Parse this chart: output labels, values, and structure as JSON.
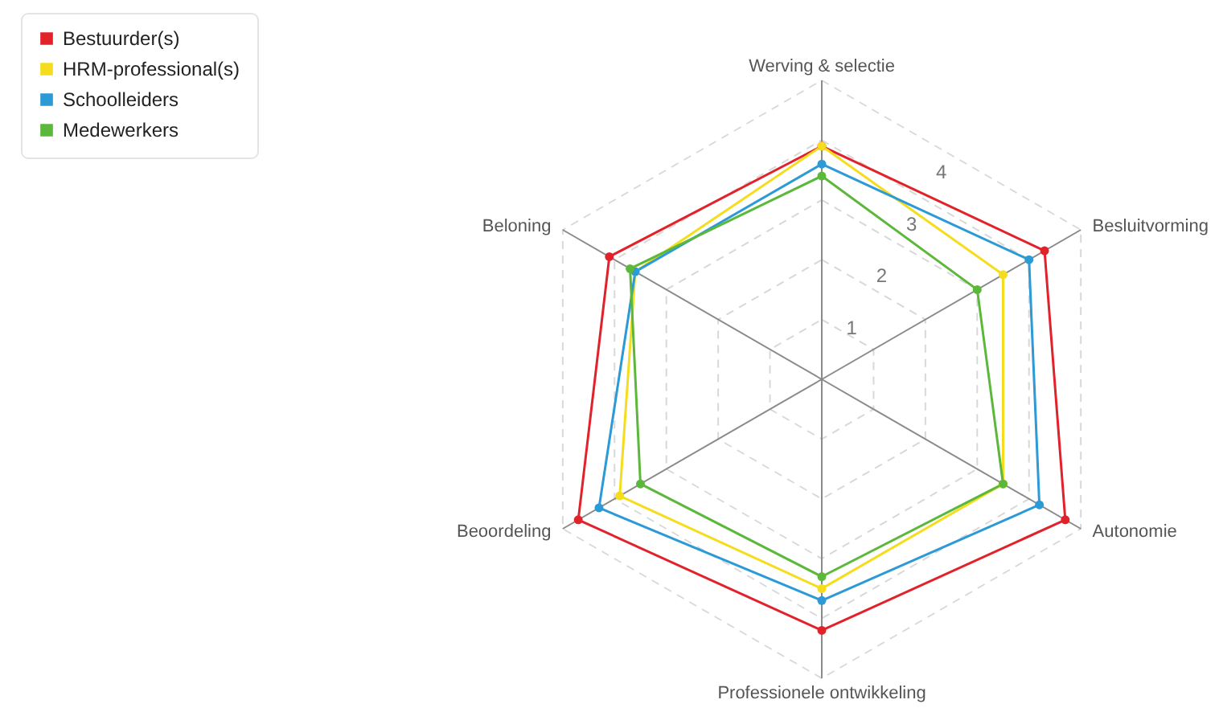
{
  "chart_data": {
    "type": "radar",
    "categories": [
      "Werving & selectie",
      "Besluitvorming",
      "Autonomie",
      "Professionele ontwikkeling",
      "Beoordeling",
      "Beloning"
    ],
    "series": [
      {
        "name": "Bestuurder(s)",
        "color": "#e2222b",
        "values": [
          3.9,
          4.3,
          4.7,
          4.2,
          4.7,
          4.1
        ]
      },
      {
        "name": "HRM-professional(s)",
        "color": "#f5dd1e",
        "values": [
          3.9,
          3.5,
          3.5,
          3.5,
          3.9,
          3.6
        ]
      },
      {
        "name": "Schoolleiders",
        "color": "#2b9ad6",
        "values": [
          3.6,
          4.0,
          4.2,
          3.7,
          4.3,
          3.6
        ]
      },
      {
        "name": "Medewerkers",
        "color": "#5cb83a",
        "values": [
          3.4,
          3.0,
          3.5,
          3.3,
          3.5,
          3.7
        ]
      }
    ],
    "ylim": [
      0,
      5
    ],
    "yticks": [
      1,
      2,
      3,
      4
    ],
    "grid": true,
    "marker": "circle",
    "legend": "top left"
  }
}
